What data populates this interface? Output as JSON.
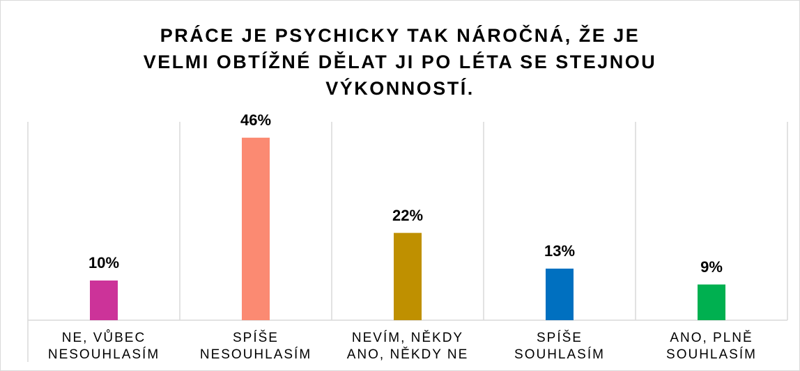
{
  "chart_data": {
    "type": "bar",
    "title": "PRÁCE JE PSYCHICKY TAK NÁROČNÁ, ŽE JE\nVELMI OBTÍŽNÉ DĚLAT JI PO LÉTA SE STEJNOU\nVÝKONNOSTÍ.",
    "categories": [
      "NE, VŮBEC\nNESOUHLASÍM",
      "SPÍŠE\nNESOUHLASÍM",
      "NEVÍM, NĚKDY\nANO, NĚKDY NE",
      "SPÍŠE\nSOUHLASÍM",
      "ANO, PLNĚ\nSOUHLASÍM"
    ],
    "values": [
      10,
      46,
      22,
      13,
      9
    ],
    "value_labels": [
      "10%",
      "46%",
      "22%",
      "13%",
      "9%"
    ],
    "colors": [
      "#cc3399",
      "#fb8a72",
      "#bf9000",
      "#0070c0",
      "#00b050"
    ],
    "ylim": [
      0,
      50
    ]
  }
}
